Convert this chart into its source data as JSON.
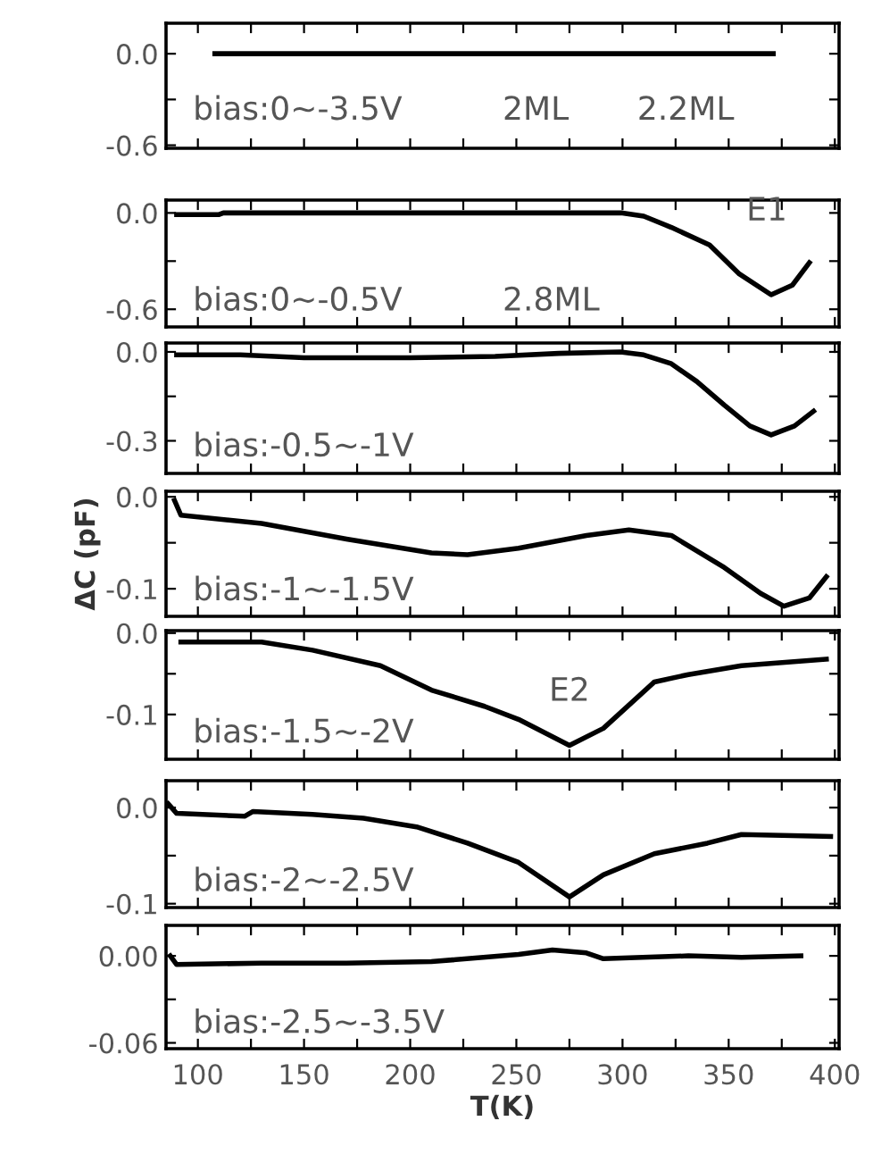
{
  "chart_data": [
    {
      "type": "line",
      "xlim": [
        85,
        402
      ],
      "ylim": [
        -0.62,
        0.2
      ],
      "tick_labels": "y",
      "grid": false,
      "legend": false,
      "marker": "none",
      "line_style": "solid",
      "xticks": [
        100,
        {
          "value": 125,
          "label": null
        },
        150,
        {
          "value": 175,
          "label": null
        },
        200,
        {
          "value": 225,
          "label": null
        },
        250,
        {
          "value": 275,
          "label": null
        },
        300,
        {
          "value": 325,
          "label": null
        },
        350,
        {
          "value": 375,
          "label": null
        },
        400
      ],
      "yticks": [
        {
          "value": 0,
          "label": "0.0"
        },
        {
          "value": -0.3,
          "label": null
        },
        {
          "value": -0.6,
          "label": "-0.6"
        }
      ],
      "annotations": [
        "bias:0~-3.5V",
        "2ML",
        "2.2ML"
      ],
      "series": [
        {
          "color": "#000000",
          "x": [
            108,
            160,
            230,
            300,
            371
          ],
          "values": [
            0,
            0,
            0,
            0,
            0
          ]
        }
      ]
    },
    {
      "type": "line",
      "xlim": [
        85,
        402
      ],
      "ylim": [
        -0.71,
        0.08
      ],
      "tick_labels": "y",
      "grid": false,
      "legend": false,
      "marker": "none",
      "line_style": "solid",
      "xticks": [
        100,
        {
          "value": 125,
          "label": null
        },
        150,
        {
          "value": 175,
          "label": null
        },
        200,
        {
          "value": 225,
          "label": null
        },
        250,
        {
          "value": 275,
          "label": null
        },
        300,
        {
          "value": 325,
          "label": null
        },
        350,
        {
          "value": 375,
          "label": null
        },
        400
      ],
      "yticks": [
        {
          "value": 0,
          "label": "0.0"
        },
        {
          "value": -0.3,
          "label": null
        },
        {
          "value": -0.6,
          "label": "-0.6"
        }
      ],
      "annotations": [
        "bias:0~-0.5V",
        "2.8ML",
        {
          "text": "E1",
          "x": 370,
          "y": -0.51
        }
      ],
      "series": [
        {
          "color": "#000000",
          "x": [
            90,
            110,
            112,
            200,
            250,
            300,
            310,
            323,
            341,
            355,
            370,
            380,
            388
          ],
          "values": [
            -0.01,
            -0.01,
            0,
            0,
            0,
            0,
            -0.02,
            -0.09,
            -0.2,
            -0.38,
            -0.51,
            -0.45,
            -0.31
          ]
        }
      ]
    },
    {
      "type": "line",
      "xlim": [
        85,
        402
      ],
      "ylim": [
        -0.41,
        0.03
      ],
      "tick_labels": "y",
      "grid": false,
      "legend": false,
      "marker": "none",
      "line_style": "solid",
      "xticks": [
        100,
        {
          "value": 125,
          "label": null
        },
        150,
        {
          "value": 175,
          "label": null
        },
        200,
        {
          "value": 225,
          "label": null
        },
        250,
        {
          "value": 275,
          "label": null
        },
        300,
        {
          "value": 325,
          "label": null
        },
        350,
        {
          "value": 375,
          "label": null
        },
        400
      ],
      "yticks": [
        {
          "value": 0,
          "label": "0.0"
        },
        {
          "value": -0.15,
          "label": null
        },
        {
          "value": -0.3,
          "label": "-0.3"
        }
      ],
      "annotations": [
        "bias:-0.5~-1V"
      ],
      "series": [
        {
          "color": "#000000",
          "x": [
            90,
            120,
            150,
            200,
            240,
            270,
            299,
            310,
            323,
            335,
            348,
            360,
            370,
            381,
            390
          ],
          "values": [
            -0.01,
            -0.01,
            -0.02,
            -0.02,
            -0.015,
            -0.005,
            0,
            -0.01,
            -0.04,
            -0.1,
            -0.18,
            -0.25,
            -0.28,
            -0.25,
            -0.2
          ]
        }
      ]
    },
    {
      "type": "line",
      "xlim": [
        85,
        402
      ],
      "ylim": [
        -0.13,
        0.006
      ],
      "tick_labels": "y",
      "grid": false,
      "legend": false,
      "marker": "none",
      "line_style": "solid",
      "ylabel": "ΔC (pF)",
      "xticks": [
        100,
        {
          "value": 125,
          "label": null
        },
        150,
        {
          "value": 175,
          "label": null
        },
        200,
        {
          "value": 225,
          "label": null
        },
        250,
        {
          "value": 275,
          "label": null
        },
        300,
        {
          "value": 325,
          "label": null
        },
        350,
        {
          "value": 375,
          "label": null
        },
        400
      ],
      "yticks": [
        {
          "value": 0,
          "label": "0.0"
        },
        {
          "value": -0.05,
          "label": null
        },
        {
          "value": -0.1,
          "label": "-0.1"
        }
      ],
      "annotations": [
        "bias:-1~-1.5V"
      ],
      "series": [
        {
          "color": "#000000",
          "x": [
            89,
            92,
            130,
            170,
            210,
            227,
            251,
            283,
            303,
            323,
            348,
            365,
            376,
            388,
            396
          ],
          "values": [
            -0.004,
            -0.02,
            -0.029,
            -0.046,
            -0.061,
            -0.063,
            -0.056,
            -0.042,
            -0.036,
            -0.042,
            -0.077,
            -0.105,
            -0.119,
            -0.11,
            -0.087
          ]
        }
      ]
    },
    {
      "type": "line",
      "xlim": [
        85,
        402
      ],
      "ylim": [
        -0.155,
        0.003
      ],
      "tick_labels": "y",
      "grid": false,
      "legend": false,
      "marker": "none",
      "line_style": "solid",
      "xticks": [
        100,
        {
          "value": 125,
          "label": null
        },
        150,
        {
          "value": 175,
          "label": null
        },
        200,
        {
          "value": 225,
          "label": null
        },
        250,
        {
          "value": 275,
          "label": null
        },
        300,
        {
          "value": 325,
          "label": null
        },
        350,
        {
          "value": 375,
          "label": null
        },
        400
      ],
      "yticks": [
        {
          "value": 0,
          "label": "0.0"
        },
        {
          "value": -0.05,
          "label": null
        },
        {
          "value": -0.1,
          "label": "-0.1"
        }
      ],
      "annotations": [
        "bias:-1.5~-2V",
        {
          "text": "E2",
          "x": 275,
          "y": -0.138
        }
      ],
      "series": [
        {
          "color": "#000000",
          "x": [
            92,
            130,
            154,
            186,
            210,
            235,
            251,
            275,
            291,
            315,
            331,
            356,
            396
          ],
          "values": [
            -0.011,
            -0.011,
            -0.021,
            -0.04,
            -0.07,
            -0.09,
            -0.106,
            -0.138,
            -0.117,
            -0.06,
            -0.051,
            -0.04,
            -0.032
          ]
        }
      ]
    },
    {
      "type": "line",
      "xlim": [
        85,
        402
      ],
      "ylim": [
        -0.104,
        0.028
      ],
      "tick_labels": "y",
      "grid": false,
      "legend": false,
      "marker": "none",
      "line_style": "solid",
      "xticks": [
        100,
        {
          "value": 125,
          "label": null
        },
        150,
        {
          "value": 175,
          "label": null
        },
        200,
        {
          "value": 225,
          "label": null
        },
        250,
        {
          "value": 275,
          "label": null
        },
        300,
        {
          "value": 325,
          "label": null
        },
        350,
        {
          "value": 375,
          "label": null
        },
        400
      ],
      "yticks": [
        {
          "value": 0,
          "label": "0.0"
        },
        {
          "value": -0.05,
          "label": null
        },
        {
          "value": -0.1,
          "label": "-0.1"
        }
      ],
      "annotations": [
        "bias:-2~-2.5V"
      ],
      "series": [
        {
          "color": "#000000",
          "x": [
            86,
            90,
            122,
            126,
            154,
            178,
            203,
            227,
            251,
            275,
            291,
            315,
            340,
            356,
            398
          ],
          "values": [
            0.004,
            -0.006,
            -0.009,
            -0.004,
            -0.007,
            -0.011,
            -0.02,
            -0.037,
            -0.057,
            -0.093,
            -0.07,
            -0.048,
            -0.037,
            -0.028,
            -0.03
          ]
        }
      ]
    },
    {
      "type": "line",
      "xlim": [
        85,
        402
      ],
      "ylim": [
        -0.064,
        0.021
      ],
      "grid": false,
      "legend": false,
      "marker": "none",
      "line_style": "solid",
      "xlabel": "T(K)",
      "xticks": [
        100,
        {
          "value": 125,
          "label": null
        },
        150,
        {
          "value": 175,
          "label": null
        },
        200,
        {
          "value": 225,
          "label": null
        },
        250,
        {
          "value": 275,
          "label": null
        },
        300,
        {
          "value": 325,
          "label": null
        },
        350,
        {
          "value": 375,
          "label": null
        },
        400
      ],
      "yticks": [
        {
          "value": 0,
          "label": "0.00"
        },
        {
          "value": -0.03,
          "label": null
        },
        {
          "value": -0.06,
          "label": "-0.06"
        }
      ],
      "annotations": [
        "bias:-2.5~-3.5V"
      ],
      "series": [
        {
          "color": "#000000",
          "x": [
            87,
            90,
            130,
            170,
            210,
            251,
            267,
            283,
            291,
            331,
            356,
            384
          ],
          "values": [
            0,
            -0.006,
            -0.005,
            -0.005,
            -0.004,
            0.001,
            0.004,
            0.002,
            -0.002,
            0,
            -0.001,
            0
          ]
        }
      ]
    }
  ]
}
